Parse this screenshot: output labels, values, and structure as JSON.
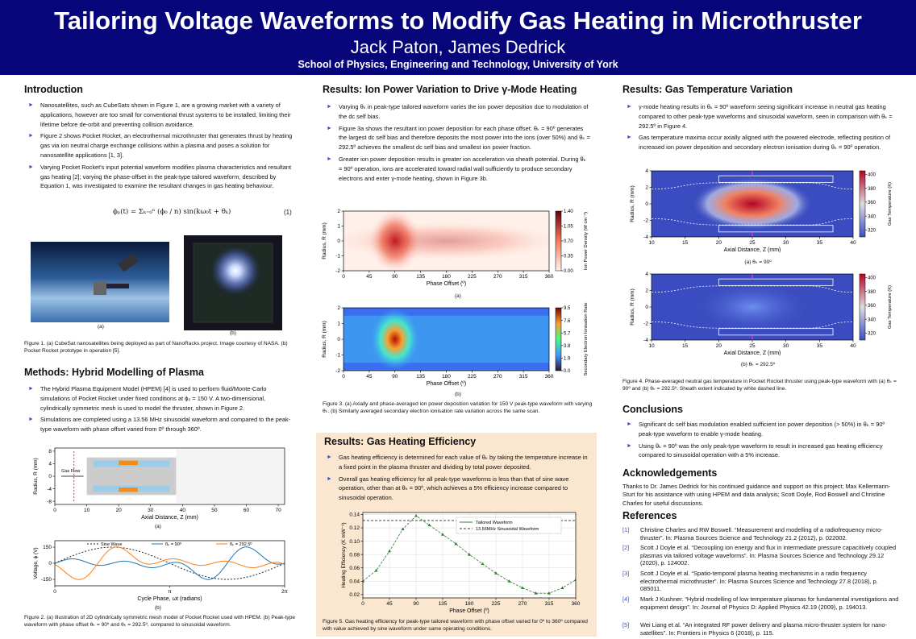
{
  "header": {
    "title": "Tailoring Voltage Waveforms to Modify Gas Heating in Microthruster",
    "authors": "Jack Paton, James Dedrick",
    "affiliation": "School of Physics, Engineering and Technology, University of York"
  },
  "intro": {
    "heading": "Introduction",
    "bullets": [
      "Nanosatellites, such as CubeSats shown in Figure 1, are a growing market with a variety of applications, however are too small for conventional thrust systems to be installed, limiting their lifetime before de-orbit and preventing collision avoidance.",
      "Figure 2 shows Pocket Rocket, an electrothermal microthruster that generates thrust by heating gas via ion neutral charge exchange collisions within a plasma and poses a solution for nanosatellite applications [1, 3].",
      "Varying Pocket Rocket's input potential waveform modifies plasma characteristics and resultant gas heating [2]; varying the phase-offset in the peak-type tailored waveform, described by Equation 1, was investigated to examine the resultant changes in gas heating behaviour."
    ],
    "equation": "ϕₚ(t) = Σₖ₌₀ⁿ (ϕ₀ / n) sin(kω₀t + θₖ)",
    "equation_number": "(1)",
    "figure1_a": "(a)",
    "figure1_b": "(b)",
    "figure1_caption": "Figure 1. (a) CubeSat nanosatellites being deployed as part of NanoRacks project. Image courtesy of NASA. (b) Pocket Rocket prototype in operation [5]."
  },
  "methods": {
    "heading": "Methods: Hybrid Modelling of Plasma",
    "bullets": [
      "The Hybrid Plasma Equipment Model (HPEM) [4] is used to perform fluid/Monte-Carlo simulations of Pocket Rocket under fixed conditions at ϕ₀ = 150 V. A two-dimensional, cylindrically symmetric mesh is used to model the thruster, shown in Figure 2.",
      "Simulations are completed using a 13.56 MHz sinusoidal waveform and compared to the peak-type waveform with phase offset varied from 0º through 360º."
    ],
    "figure2a": {
      "xlim": [
        0,
        72
      ],
      "ylim": [
        -9,
        9
      ],
      "xticks": [
        0,
        10,
        20,
        30,
        40,
        50,
        60,
        70
      ],
      "yticks": [
        -8,
        -4,
        0,
        4,
        8
      ],
      "xlabel": "Axial Distance, Z (mm)",
      "ylabel": "Radius, R (mm)",
      "gas_label": "Gas Flow",
      "label": "(a)"
    },
    "figure2b": {
      "xlim": [
        0,
        6.2832
      ],
      "ylim": [
        -210,
        210
      ],
      "xticks": [
        0,
        {
          "value": 3.1416,
          "label": "π"
        },
        {
          "value": 6.2832,
          "label": "2π"
        }
      ],
      "yticks": [
        -150,
        0,
        150
      ],
      "xlabel": "Cycle Phase, ωt (radians)",
      "ylabel": "Voltage, ϕ (V)",
      "legend": [
        "Sine Wave",
        "θₖ = 90º",
        "θₖ = 292.5º"
      ],
      "label": "(b)"
    },
    "figure2_caption": "Figure 2. (a) Illustration of 2D cylindrically symmetric mesh model of Pocket Rocket used with HPEM. (b) Peak-type waveform with phase offset θₖ = 90º and θₖ = 292.5º, compared to sinusoidal waveform."
  },
  "ion_power": {
    "heading": "Results: Ion Power Variation to Drive γ-Mode Heating",
    "bullets": [
      "Varying θₖ in peak-type tailored waveform varies the ion power deposition due to modulation of the dc self bias.",
      "Figure 3a shows the resultant ion power deposition for each phase offset: θₖ = 90º generates the largest dc self bias and therefore deposits the most power into the ions (over 50%) and θₖ = 292.5º achieves the smallest dc self bias and smallest ion power fraction.",
      "Greater ion power deposition results in greater ion acceleration via sheath potential. During θₖ = 90º operation, ions are accelerated toward radial wall sufficiently to produce secondary electrons and enter γ-mode heating, shown in Figure 3b."
    ],
    "figure3a": {
      "xlim": [
        0,
        360
      ],
      "ylim": [
        -2,
        2
      ],
      "xticks": [
        0,
        45,
        90,
        135,
        180,
        225,
        270,
        315,
        360
      ],
      "yticks": [
        -2,
        -1,
        0,
        1,
        2
      ],
      "xlabel": "Phase Offset (º)",
      "ylabel": "Radius, R (mm)",
      "colorbar": {
        "lim": [
          0,
          1.4
        ],
        "label": "Ion Power Density (W cm⁻³)",
        "ticks": [
          {
            "value": 0,
            "label": "0.00"
          },
          0.35,
          {
            "value": 0.7,
            "label": "0.70"
          },
          1.05,
          {
            "value": 1.4,
            "label": "1.40"
          }
        ]
      },
      "label": "(a)"
    },
    "figure3b": {
      "xlim": [
        0,
        360
      ],
      "ylim": [
        -2,
        2
      ],
      "xticks": [
        0,
        45,
        90,
        135,
        180,
        225,
        270,
        315,
        360
      ],
      "yticks": [
        -2,
        -1,
        0,
        1,
        2
      ],
      "xlabel": "Phase Offset (º)",
      "ylabel": "Radius, R (mm)",
      "colorbar": {
        "lim": [
          0,
          9.5
        ],
        "label": "Secondary Electron Ionisation Rate",
        "ticks": [
          {
            "value": 0,
            "label": "0.0"
          },
          1.9,
          3.8,
          5.7,
          7.6,
          9.5
        ]
      },
      "label": "(b)"
    },
    "figure3_caption": "Figure 3. (a) Axially and phase-averaged ion power deposition variation for 150 V peak-type waveform with varying θₖ. (b) Similarly averaged secondary electron ionisation rate variation across the same scan."
  },
  "gas_efficiency": {
    "heading": "Results: Gas Heating Efficiency",
    "bullets": [
      "Gas heating efficiency is determined for each value of θₖ by taking the temperature increase in a fixed point in the plasma thruster and dividing by total power deposited.",
      "Overall gas heating efficiency for all peak-type waveforms is less than that of sine wave operation, other than at θₖ = 90º, which achieves a 5% efficiency increase compared to sinusoidal operation."
    ],
    "chart_data": {
      "type": "line",
      "x": [
        0,
        22.5,
        45,
        67.5,
        90,
        112.5,
        135,
        157.5,
        180,
        202.5,
        225,
        247.5,
        270,
        292.5,
        315,
        337.5,
        360
      ],
      "series": [
        {
          "name": "Tailored Waveform",
          "color": "#2e7d32",
          "values": [
            0.04,
            0.056,
            0.085,
            0.118,
            0.138,
            0.124,
            0.11,
            0.096,
            0.08,
            0.066,
            0.052,
            0.04,
            0.03,
            0.022,
            0.022,
            0.03,
            0.042
          ]
        }
      ],
      "reference": {
        "name": "13.56MHz Sinusoidal Waveform",
        "value": 0.131,
        "color": "#333333"
      },
      "xlim": [
        0,
        360
      ],
      "ylim": [
        0.015,
        0.143
      ],
      "xticks": [
        0,
        45,
        90,
        135,
        180,
        225,
        270,
        315,
        360
      ],
      "yticks": [
        0.02,
        0.04,
        0.06,
        0.08,
        {
          "value": 0.1,
          "label": "0.10"
        },
        0.12,
        0.14
      ],
      "xlabel": "Phase Offset (º)",
      "ylabel": "Heating Efficiency (K mW⁻¹)",
      "grid": true
    },
    "figure5_caption": "Figure 5. Gas heating efficiency for peak-type tailored waveform with phase offset varied for 0º to 360º compared with value achieved by sine waveform under same operating conditions."
  },
  "gas_temperature": {
    "heading": "Results: Gas Temperature Variation",
    "bullets": [
      "γ-mode heating results in θₖ = 90º waveform seeing significant increase in neutral gas heating compared to other peak-type waveforms and sinusoidal waveform, seen in comparison with θₖ = 292.5º in Figure 4.",
      "Gas temperature maxima occur axially aligned with the powered electrode, reflecting position of increased ion power deposition and secondary electron ionisation during θₖ = 90º operation."
    ],
    "figure4a": {
      "xlim": [
        10,
        40
      ],
      "ylim": [
        -4,
        4
      ],
      "xticks": [
        10,
        15,
        20,
        25,
        30,
        35,
        40
      ],
      "yticks": [
        -4,
        -2,
        0,
        2,
        4
      ],
      "xlabel": "Axial Distance, Z (mm)",
      "ylabel": "Radius, R (mm)",
      "colorbar": {
        "lim": [
          310,
          405
        ],
        "label": "Gas Temperature (K)",
        "ticks": [
          320,
          340,
          360,
          380,
          400
        ]
      },
      "label": "(a) θₖ = 90º"
    },
    "figure4b": {
      "xlim": [
        10,
        40
      ],
      "ylim": [
        -4,
        4
      ],
      "xticks": [
        10,
        15,
        20,
        25,
        30,
        35,
        40
      ],
      "yticks": [
        -4,
        -2,
        0,
        2,
        4
      ],
      "xlabel": "Axial Distance, Z (mm)",
      "ylabel": "Radius, R (mm)",
      "colorbar": {
        "lim": [
          310,
          405
        ],
        "label": "Gas Temperature (K)",
        "ticks": [
          320,
          340,
          360,
          380,
          400
        ]
      },
      "label": "(b) θₖ = 292.5º"
    },
    "figure4_caption": "Figure 4. Phase-averaged neutral gas temperature in Pocket Rocket thruster using peak-type waveform with (a) θₖ = 90º and (b) θₖ = 292.5º. Sheath extent indicated by white dashed line."
  },
  "conclusions": {
    "heading": "Conclusions",
    "bullets": [
      "Significant dc self bias modulation enabled sufficient ion power deposition (> 50%) in θₖ = 90º peak-type waveform to enable γ-mode heating.",
      "Using θₖ = 90º was the only peak-type waveform to result in increased gas heating efficiency compared to sinusoidal operation with a 5% increase."
    ]
  },
  "acknowledgements": {
    "heading": "Acknowledgements",
    "text": "Thanks to Dr. James Dedrick for his continued guidance and support on this project; Max Kellermann-Sturt for his assistance with using HPEM and data analysis; Scott Doyle, Rod Boswell and Christine Charles for useful discussions."
  },
  "references": {
    "heading": "References",
    "items": [
      {
        "num": "[1]",
        "text": "Christine Charles and RW Boswell. “Measurement and modelling of a radiofrequency micro-thruster”. In: Plasma Sources Science and Technology 21.2 (2012), p. 022002."
      },
      {
        "num": "[2]",
        "text": "Scott J Doyle et al. “Decoupling ion energy and flux in intermediate pressure capacitively coupled plasmas via tailored voltage waveforms”. In: Plasma Sources Science and Technology 29.12 (2020), p. 124002."
      },
      {
        "num": "[3]",
        "text": "Scott J Doyle et al. “Spatio-temporal plasma heating mechanisms in a radio frequency electrothermal microthruster”. In: Plasma Sources Science and Technology 27.8 (2018), p. 085011."
      },
      {
        "num": "[4]",
        "text": "Mark J Kushner. “Hybrid modelling of low temperature plasmas for fundamental investigations and equipment design”. In: Journal of Physics D: Applied Physics 42.19 (2009), p. 194013."
      },
      {
        "num": "[5]",
        "text": "Wei Liang et al. “An integrated RF power delivery and plasma micro-thruster system for nano-satellites”. In: Frontiers in Physics 6 (2018), p. 115."
      }
    ]
  }
}
